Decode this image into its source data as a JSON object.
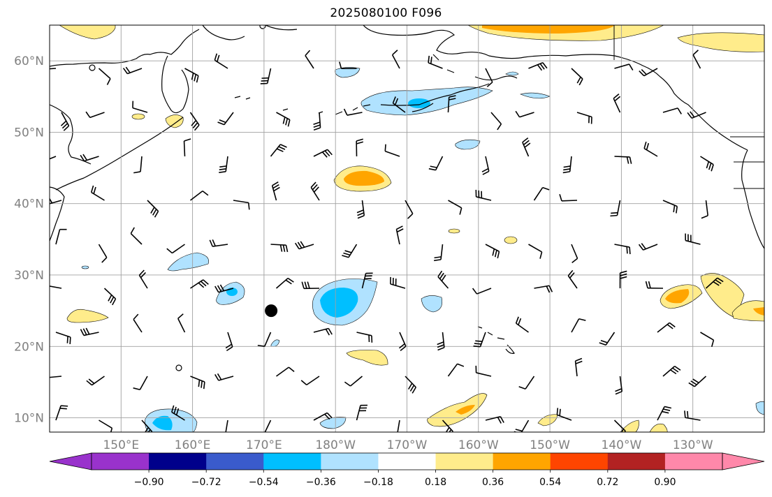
{
  "title": "2025080100 F096",
  "lat_labels": [
    "60°N",
    "50°N",
    "40°N",
    "30°N",
    "20°N",
    "10°N"
  ],
  "lat_values": [
    60,
    50,
    40,
    30,
    20,
    10
  ],
  "lon_labels": [
    "150°E",
    "160°E",
    "170°E",
    "180°W",
    "170°W",
    "160°W",
    "150°W",
    "140°W",
    "130°W"
  ],
  "lon_values": [
    150,
    160,
    170,
    180,
    190,
    200,
    210,
    220,
    230
  ],
  "extent": {
    "lon_min": 140,
    "lon_max": 240,
    "lat_min": 8,
    "lat_max": 65
  },
  "colorbar": {
    "ticks": [
      "−0.90",
      "−0.72",
      "−0.54",
      "−0.36",
      "−0.18",
      "0.18",
      "0.36",
      "0.54",
      "0.72",
      "0.90"
    ],
    "colors": [
      "#9932cc",
      "#00008b",
      "#3a5bcc",
      "#00bfff",
      "#b0e2ff",
      "#ffffff",
      "#ffec8b",
      "#ffa500",
      "#ff4500",
      "#b22222",
      "#ff88aa"
    ]
  },
  "colors": {
    "light_blue": "#b0e2ff",
    "blue": "#00bfff",
    "light_yellow": "#ffec8b",
    "orange": "#ffa500",
    "red_orange": "#ff4500",
    "grid": "#a0a0a0"
  },
  "storm_marker": {
    "lon": 171,
    "lat": 25
  },
  "icons": [
    "storm-center-marker-icon"
  ]
}
